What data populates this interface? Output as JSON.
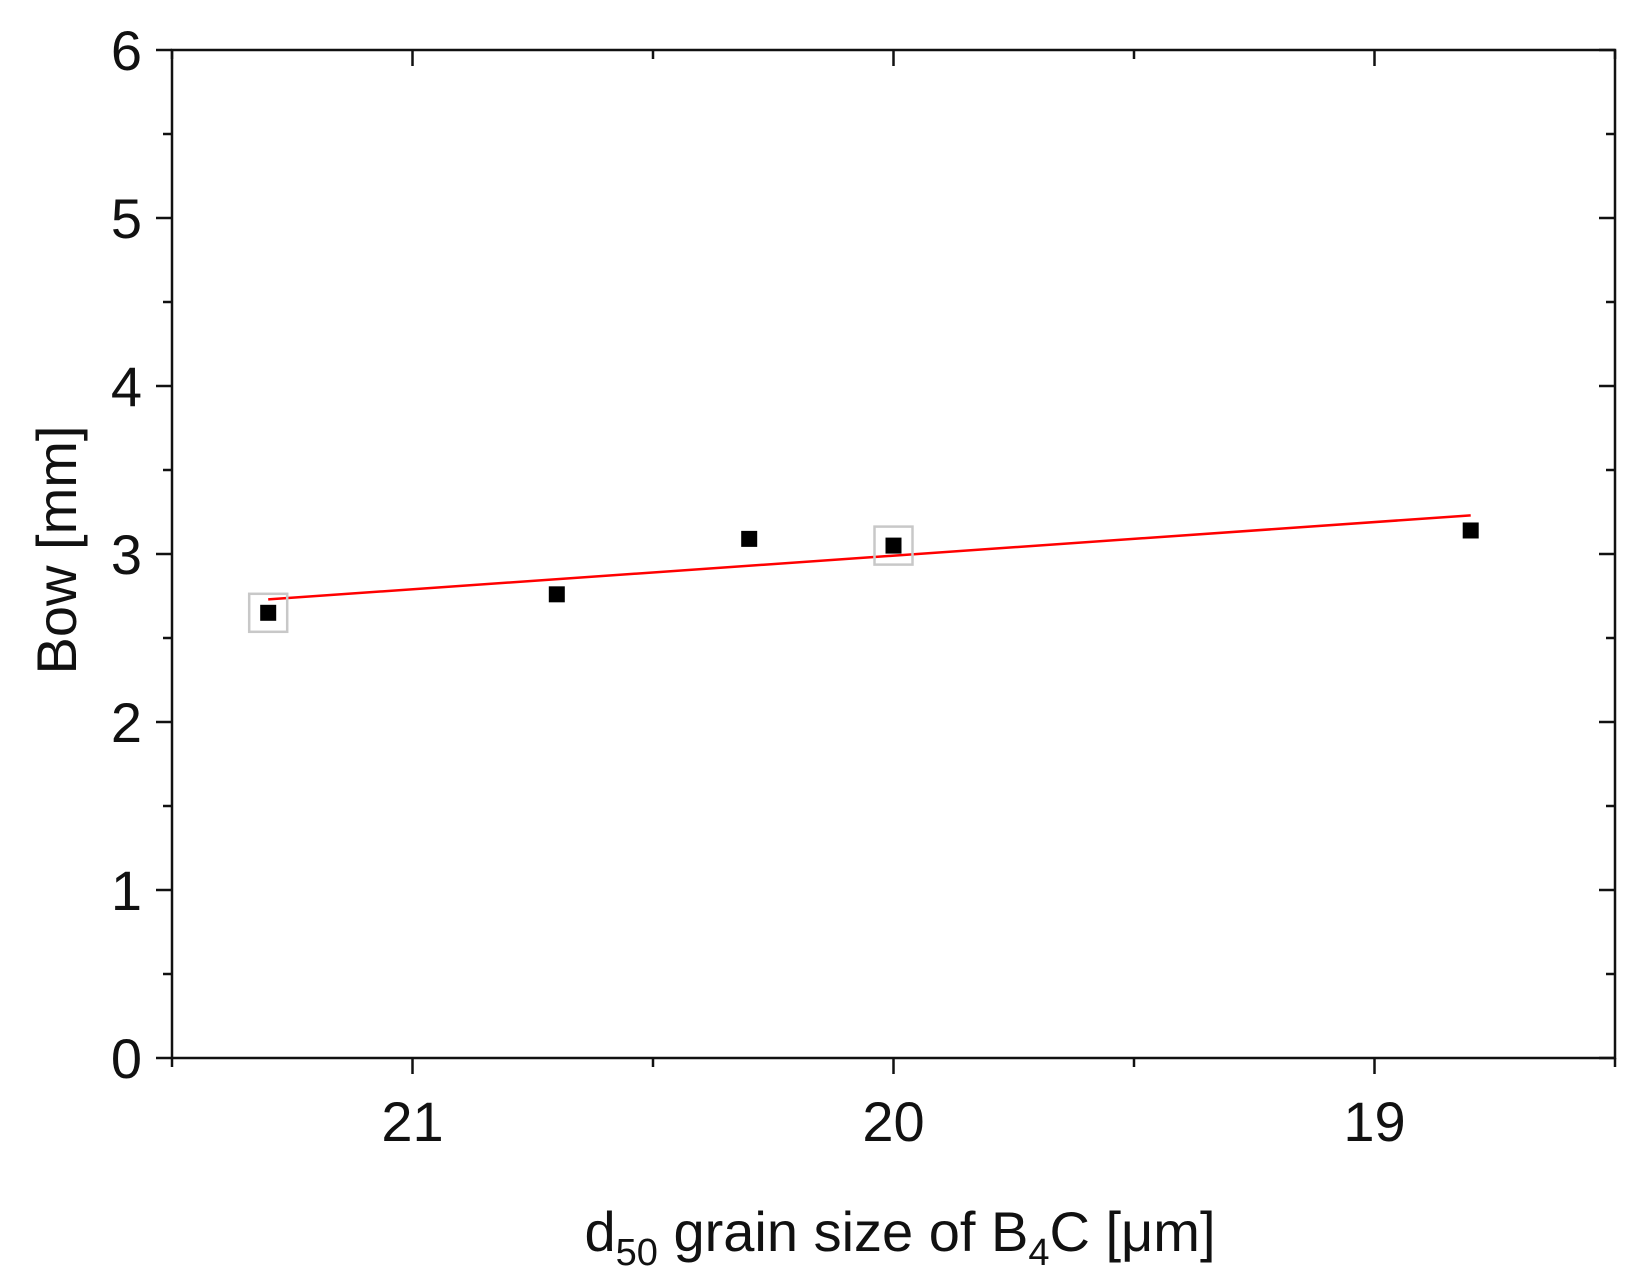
{
  "chart_data": {
    "type": "scatter",
    "xlabel_parts": [
      "d",
      "50",
      " grain size of B",
      "4",
      "C [μm]"
    ],
    "ylabel": "Bow [mm]",
    "xlim": [
      21.5,
      18.5
    ],
    "ylim": [
      0,
      6
    ],
    "x_reversed": true,
    "x_ticks": [
      21,
      20,
      19
    ],
    "x_tick_labels": [
      "21",
      "20",
      "19"
    ],
    "x_minor_ticks": [
      21.5,
      20.5,
      19.5,
      18.5
    ],
    "y_ticks": [
      0,
      1,
      2,
      3,
      4,
      5,
      6
    ],
    "y_tick_labels": [
      "0",
      "1",
      "2",
      "3",
      "4",
      "5",
      "6"
    ],
    "y_minor_ticks": [
      0.5,
      1.5,
      2.5,
      3.5,
      4.5,
      5.5
    ],
    "grid": false,
    "series": [
      {
        "points": [
          {
            "x": 21.3,
            "y": 2.65,
            "highlighted": true
          },
          {
            "x": 20.7,
            "y": 2.76,
            "highlighted": false
          },
          {
            "x": 20.3,
            "y": 3.09,
            "highlighted": false
          },
          {
            "x": 20.0,
            "y": 3.05,
            "highlighted": true
          },
          {
            "x": 18.8,
            "y": 3.14,
            "highlighted": false
          }
        ],
        "marker": "square",
        "color": "#000000"
      }
    ],
    "fit_line": {
      "x": [
        21.3,
        18.8
      ],
      "y": [
        2.73,
        3.23
      ],
      "color": "#ff0000"
    },
    "highlight_box_color": "#c8c8c8"
  }
}
